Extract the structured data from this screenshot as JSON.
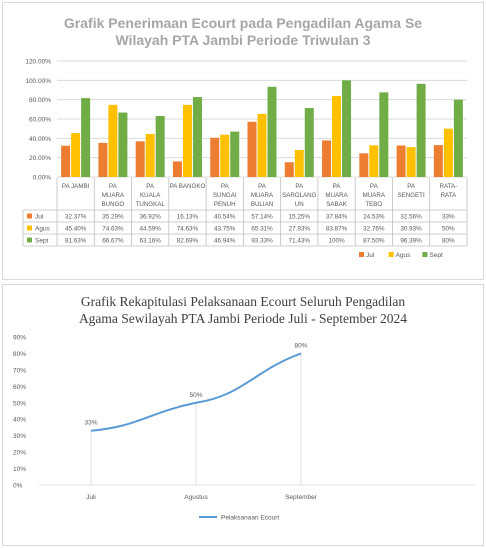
{
  "chart1": {
    "title_line1": "Grafik Penerimaan Ecourt pada Pengadilan Agama Se",
    "title_line2": "Wilayah PTA Jambi Periode Triwulan 3"
  },
  "chart2": {
    "title_line1": "Grafik Rekapitulasi Pelaksanaan Ecourt Seluruh Pengadilan",
    "title_line2": "Agama Sewilayah PTA Jambi Periode Juli - September 2024"
  },
  "chart_data": [
    {
      "type": "bar",
      "title": "Grafik Penerimaan Ecourt pada Pengadilan Agama Se Wilayah PTA Jambi Periode Triwulan 3",
      "categories": [
        [
          "PA JAMBI"
        ],
        [
          "PA",
          "MUARA",
          "BUNGO"
        ],
        [
          "PA",
          "KUALA",
          "TUNGKAL"
        ],
        [
          "PA BANGKO"
        ],
        [
          "PA",
          "SUNGAI",
          "PENUH"
        ],
        [
          "PA",
          "MUARA",
          "BULIAN"
        ],
        [
          "PA",
          "SAROLANG",
          "UN"
        ],
        [
          "PA",
          "MUARA",
          "SABAK"
        ],
        [
          "PA",
          "MUARA",
          "TEBO"
        ],
        [
          "PA",
          "SENGETI"
        ],
        [
          "RATA-",
          "RATA"
        ]
      ],
      "series": [
        {
          "name": "Jul",
          "color": "#ed7d31",
          "values": [
            32.37,
            35.29,
            36.92,
            16.13,
            40.54,
            57.14,
            15.25,
            37.84,
            24.53,
            32.56,
            33
          ],
          "labels": [
            "32.37%",
            "35.29%",
            "36.92%",
            "16.13%",
            "40.54%",
            "57.14%",
            "15.25%",
            "37.84%",
            "24.53%",
            "32.56%",
            "33%"
          ]
        },
        {
          "name": "Agus",
          "color": "#ffc000",
          "values": [
            45.4,
            74.63,
            44.59,
            74.63,
            43.75,
            65.31,
            27.93,
            83.87,
            32.76,
            30.93,
            50
          ],
          "labels": [
            "45.40%",
            "74.63%",
            "44.59%",
            "74.63%",
            "43.75%",
            "65.31%",
            "27.93%",
            "83.87%",
            "32.76%",
            "30.93%",
            "50%"
          ]
        },
        {
          "name": "Sept",
          "color": "#70ad47",
          "values": [
            81.63,
            66.67,
            63.16,
            82.69,
            46.94,
            93.33,
            71.43,
            100,
            87.5,
            96.39,
            80
          ],
          "labels": [
            "81.63%",
            "66.67%",
            "63.16%",
            "82.69%",
            "46.94%",
            "93.33%",
            "71.43%",
            "100%",
            "87.50%",
            "96.39%",
            "80%"
          ]
        }
      ],
      "yticks": [
        "0.00%",
        "20.00%",
        "40.00%",
        "60.00%",
        "80.00%",
        "100.00%",
        "120.00%"
      ],
      "ylim": [
        0,
        120
      ],
      "grid": true,
      "legend_position": "bottom-right",
      "data_table": true
    },
    {
      "type": "line",
      "title": "Grafik Rekapitulasi Pelaksanaan Ecourt Seluruh Pengadilan Agama Sewilayah PTA Jambi Periode Juli - September 2024",
      "categories": [
        "Juli",
        "Agustus",
        "September"
      ],
      "series": [
        {
          "name": "Pelaksanaan Ecourt",
          "color": "#5b9bd5",
          "values": [
            33,
            50,
            80
          ],
          "labels": [
            "33%",
            "50%",
            "80%"
          ]
        }
      ],
      "yticks": [
        "0%",
        "10%",
        "20%",
        "30%",
        "40%",
        "50%",
        "60%",
        "70%",
        "80%",
        "90%"
      ],
      "ylim": [
        0,
        90
      ],
      "grid": false,
      "legend_position": "bottom"
    }
  ]
}
